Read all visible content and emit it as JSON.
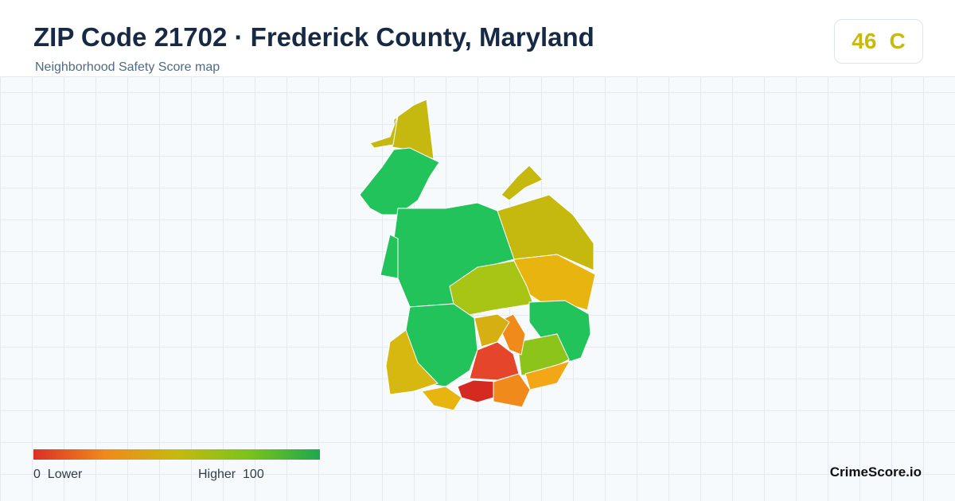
{
  "header": {
    "title": "ZIP Code 21702 · Frederick County, Maryland",
    "subtitle": "Neighborhood Safety Score map"
  },
  "score": {
    "value": 46,
    "grade": "C"
  },
  "legend": {
    "min": 0,
    "min_label": "Lower",
    "max_label": "Higher",
    "max": 100
  },
  "brand": "CrimeScore.io"
}
